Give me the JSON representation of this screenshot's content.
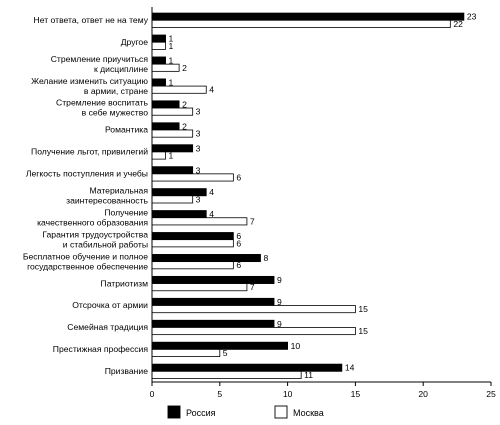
{
  "chart_data": {
    "type": "bar",
    "orientation": "horizontal",
    "categories": [
      [
        "Нет ответа, ответ не на тему"
      ],
      [
        "Другое"
      ],
      [
        "Стремление приучиться",
        "к дисциплине"
      ],
      [
        "Желание изменить ситуацию",
        "в армии, стране"
      ],
      [
        "Стремление воспитать",
        "в себе мужество"
      ],
      [
        "Романтика"
      ],
      [
        "Получение льгот, привилегий"
      ],
      [
        "Легкость поступления и учебы"
      ],
      [
        "Материальная",
        "заинтересованность"
      ],
      [
        "Получение",
        "качественного образования"
      ],
      [
        "Гарантия трудоустройства",
        "и стабильной работы"
      ],
      [
        "Бесплатное обучение и полное",
        "государственное обеспечение"
      ],
      [
        "Патриотизм"
      ],
      [
        "Отсрочка от армии"
      ],
      [
        "Семейная традиция"
      ],
      [
        "Престижная профессия"
      ],
      [
        "Призвание"
      ]
    ],
    "series": [
      {
        "name": "Россия",
        "fill": "#000000",
        "values": [
          23,
          1,
          1,
          1,
          2,
          2,
          3,
          3,
          4,
          4,
          6,
          8,
          9,
          9,
          9,
          10,
          14
        ]
      },
      {
        "name": "Москва",
        "fill": "#ffffff",
        "values": [
          22,
          1,
          2,
          4,
          3,
          3,
          1,
          6,
          3,
          7,
          6,
          6,
          7,
          15,
          15,
          5,
          11
        ]
      }
    ],
    "xlim": [
      0,
      25
    ],
    "xticks": [
      0,
      5,
      10,
      15,
      20,
      25
    ],
    "grid": false,
    "legend": "bottom"
  }
}
